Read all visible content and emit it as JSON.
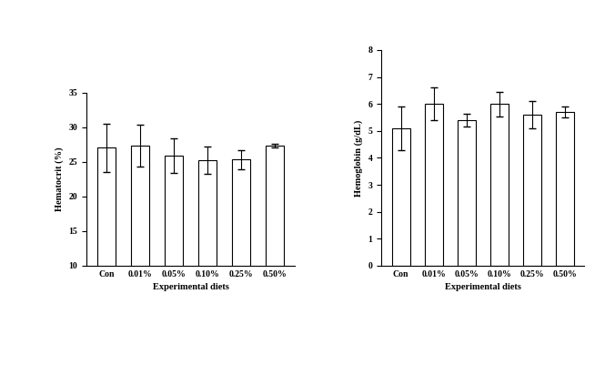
{
  "chart_data": [
    {
      "type": "bar",
      "x_label": "Experimental diets",
      "y_label": "Hematocrit (%)",
      "categories": [
        "Con",
        "0.01%",
        "0.05%",
        "0.10%",
        "0.25%",
        "0.50%"
      ],
      "values": [
        27.0,
        27.3,
        25.9,
        25.2,
        25.3,
        27.3
      ],
      "error": [
        3.5,
        3.0,
        2.5,
        2.0,
        1.4,
        0.3
      ],
      "color": "#ffffff",
      "ylim": [
        10,
        35
      ],
      "yticks": [
        10,
        15,
        20,
        25,
        30,
        35
      ],
      "grid": false
    },
    {
      "type": "bar",
      "x_label": "Experimental diets",
      "y_label": "Hemoglobin (g/dL)",
      "categories": [
        "Con",
        "0.01%",
        "0.05%",
        "0.10%",
        "0.25%",
        "0.50%"
      ],
      "values": [
        5.1,
        6.0,
        5.4,
        6.0,
        5.6,
        5.7
      ],
      "error": [
        0.8,
        0.6,
        0.25,
        0.45,
        0.5,
        0.2
      ],
      "color": "#ffffff",
      "ylim": [
        0,
        8
      ],
      "yticks": [
        0,
        1,
        2,
        3,
        4,
        5,
        6,
        7,
        8
      ],
      "grid": false
    }
  ]
}
